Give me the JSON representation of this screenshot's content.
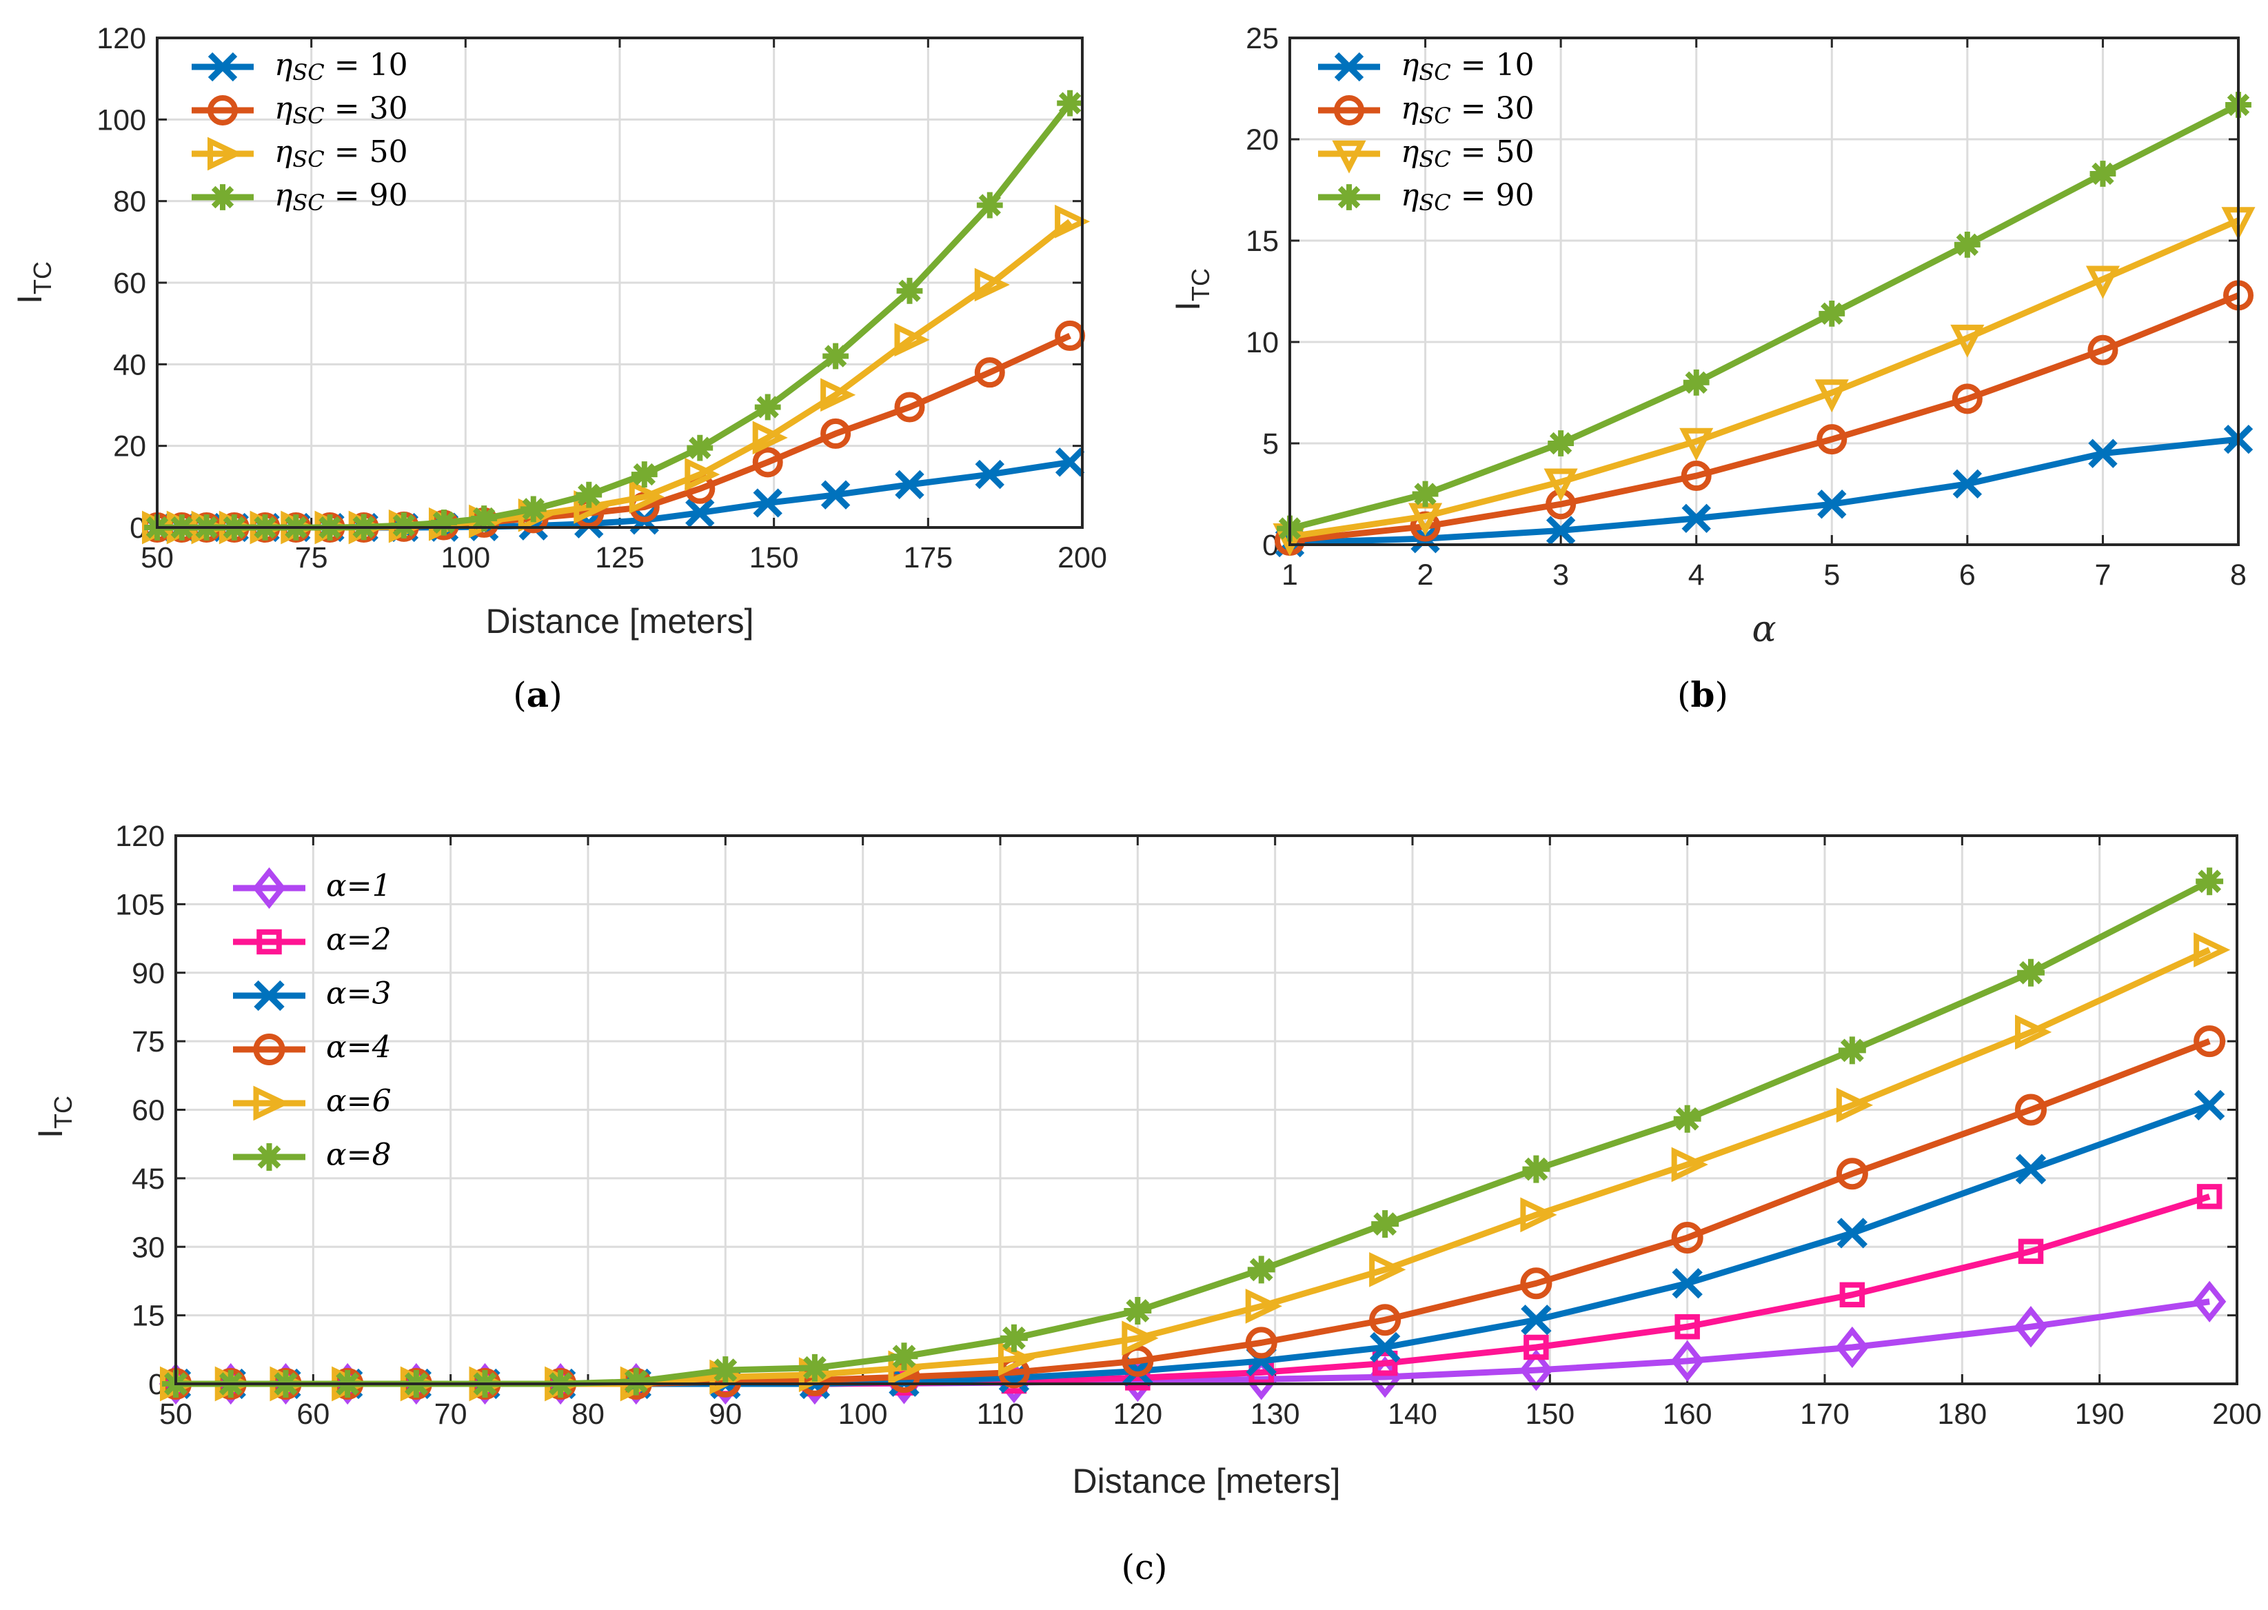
{
  "colors": {
    "blue": "#0072BD",
    "orange": "#D95319",
    "yellow": "#EDB120",
    "green": "#77AC30",
    "purple": "#B146F2",
    "magenta": "#FF1493"
  },
  "chart_data": [
    {
      "id": "a",
      "type": "line",
      "caption_letter": "a",
      "caption": "(a)",
      "xlabel": "Distance [meters]",
      "ylabel": "I",
      "ylabel_sub": "TC",
      "xlim": [
        50,
        200
      ],
      "ylim": [
        0,
        120
      ],
      "xticks": [
        50,
        75,
        100,
        125,
        150,
        175,
        200
      ],
      "yticks": [
        0,
        20,
        40,
        60,
        80,
        100,
        120
      ],
      "grid": true,
      "legend_position": "top-left",
      "x": [
        50,
        54,
        58,
        62.5,
        67.5,
        72.5,
        78,
        83.5,
        90,
        96.5,
        103,
        111,
        120,
        129,
        138,
        149,
        160,
        172,
        185,
        198
      ],
      "series": [
        {
          "name": "η_SC = 10",
          "legend": "ηSC = 10",
          "marker": "x",
          "color": "#0072BD",
          "values": [
            0,
            0,
            0,
            0,
            0,
            0,
            0,
            0,
            0,
            0.05,
            0.2,
            0.4,
            0.9,
            1.8,
            3.6,
            6,
            8,
            10.5,
            13,
            16
          ]
        },
        {
          "name": "η_SC = 30",
          "legend": "ηSC = 30",
          "marker": "circle",
          "color": "#D95319",
          "values": [
            0,
            0,
            0,
            0,
            0,
            0,
            0,
            0,
            0.2,
            0.6,
            1.2,
            2.3,
            3.5,
            5,
            9.5,
            16,
            23,
            29.5,
            38,
            47
          ]
        },
        {
          "name": "η_SC = 50",
          "legend": "ηSC = 50",
          "marker": "triangle-right",
          "color": "#EDB120",
          "values": [
            0,
            0,
            0,
            0,
            0,
            0,
            0,
            0,
            0.3,
            0.8,
            1.5,
            3,
            5,
            7.5,
            13,
            22,
            32.5,
            46,
            59.5,
            75
          ]
        },
        {
          "name": "η_SC = 90",
          "legend": "ηSC = 90",
          "marker": "star",
          "color": "#77AC30",
          "values": [
            0,
            0,
            0,
            0,
            0,
            0,
            0,
            0.1,
            0.5,
            1.2,
            2.2,
            4.5,
            8,
            13,
            19.5,
            29.5,
            42,
            58,
            79,
            104
          ]
        }
      ]
    },
    {
      "id": "b",
      "type": "line",
      "caption_letter": "b",
      "caption": "(b)",
      "xlabel": "α",
      "ylabel": "I",
      "ylabel_sub": "TC",
      "xlim": [
        1,
        8
      ],
      "ylim": [
        0,
        25
      ],
      "xticks": [
        1,
        2,
        3,
        4,
        5,
        6,
        7,
        8
      ],
      "yticks": [
        0,
        5,
        10,
        15,
        20,
        25
      ],
      "grid": true,
      "legend_position": "top-left",
      "x": [
        1,
        2,
        3,
        4,
        5,
        6,
        7,
        8
      ],
      "series": [
        {
          "name": "η_SC = 10",
          "legend": "ηSC = 10",
          "marker": "x",
          "color": "#0072BD",
          "values": [
            0.1,
            0.3,
            0.7,
            1.3,
            2,
            3,
            4.5,
            5.2
          ]
        },
        {
          "name": "η_SC = 30",
          "legend": "ηSC = 30",
          "marker": "circle",
          "color": "#D95319",
          "values": [
            0.2,
            0.9,
            2,
            3.4,
            5.2,
            7.2,
            9.6,
            12.3
          ]
        },
        {
          "name": "η_SC = 50",
          "legend": "ηSC = 50",
          "marker": "triangle-down",
          "color": "#EDB120",
          "values": [
            0.4,
            1.4,
            3.1,
            5.1,
            7.5,
            10.2,
            13.1,
            16
          ]
        },
        {
          "name": "η_SC = 90",
          "legend": "ηSC = 90",
          "marker": "star",
          "color": "#77AC30",
          "values": [
            0.8,
            2.5,
            5,
            8,
            11.4,
            14.8,
            18.3,
            21.7
          ]
        }
      ]
    },
    {
      "id": "c",
      "type": "line",
      "caption_letter": "c",
      "caption": "(c)",
      "xlabel": "Distance [meters]",
      "ylabel": "I",
      "ylabel_sub": "TC",
      "xlim": [
        50,
        200
      ],
      "ylim": [
        0,
        120
      ],
      "xticks": [
        50,
        60,
        70,
        80,
        90,
        100,
        110,
        120,
        130,
        140,
        150,
        160,
        170,
        180,
        190,
        200
      ],
      "yticks": [
        0,
        15,
        30,
        45,
        60,
        75,
        90,
        105,
        120
      ],
      "grid": true,
      "legend_position": "top-left",
      "x": [
        50,
        54,
        58,
        62.5,
        67.5,
        72.5,
        78,
        83.5,
        90,
        96.5,
        103,
        111,
        120,
        129,
        138,
        149,
        160,
        172,
        185,
        198
      ],
      "series": [
        {
          "name": "α=1",
          "legend": "α=1",
          "marker": "diamond",
          "color": "#B146F2",
          "values": [
            0,
            0,
            0,
            0,
            0,
            0,
            0,
            0,
            0,
            0,
            0.1,
            0.3,
            0.6,
            1,
            1.5,
            3,
            5,
            8,
            12.5,
            18
          ]
        },
        {
          "name": "α=2",
          "legend": "α=2",
          "marker": "square",
          "color": "#FF1493",
          "values": [
            0,
            0,
            0,
            0,
            0,
            0,
            0,
            0,
            0,
            0,
            0.2,
            0.6,
            1.3,
            2.5,
            4.5,
            8,
            12.5,
            19.5,
            29,
            41
          ]
        },
        {
          "name": "α=3",
          "legend": "α=3",
          "marker": "x",
          "color": "#0072BD",
          "values": [
            0,
            0,
            0,
            0,
            0,
            0,
            0,
            0,
            0,
            0,
            0.5,
            1.3,
            2.8,
            5,
            8,
            14,
            22,
            33,
            47,
            61
          ]
        },
        {
          "name": "α=4",
          "legend": "α=4",
          "marker": "circle",
          "color": "#D95319",
          "values": [
            0,
            0,
            0,
            0,
            0,
            0,
            0,
            0,
            0.5,
            0.8,
            1.5,
            2.5,
            5,
            9,
            14,
            22,
            32,
            46,
            60,
            75
          ]
        },
        {
          "name": "α=6",
          "legend": "α=6",
          "marker": "triangle-right",
          "color": "#EDB120",
          "values": [
            0,
            0,
            0,
            0,
            0,
            0,
            0,
            0,
            1.5,
            2,
            3.5,
            5.5,
            10,
            17,
            25,
            37,
            48,
            61,
            77,
            95
          ]
        },
        {
          "name": "α=8",
          "legend": "α=8",
          "marker": "star",
          "color": "#77AC30",
          "values": [
            0,
            0,
            0,
            0,
            0,
            0,
            0,
            0.5,
            3,
            3.5,
            6,
            10,
            16,
            25,
            35,
            47,
            58,
            73,
            90,
            110
          ]
        }
      ]
    }
  ]
}
